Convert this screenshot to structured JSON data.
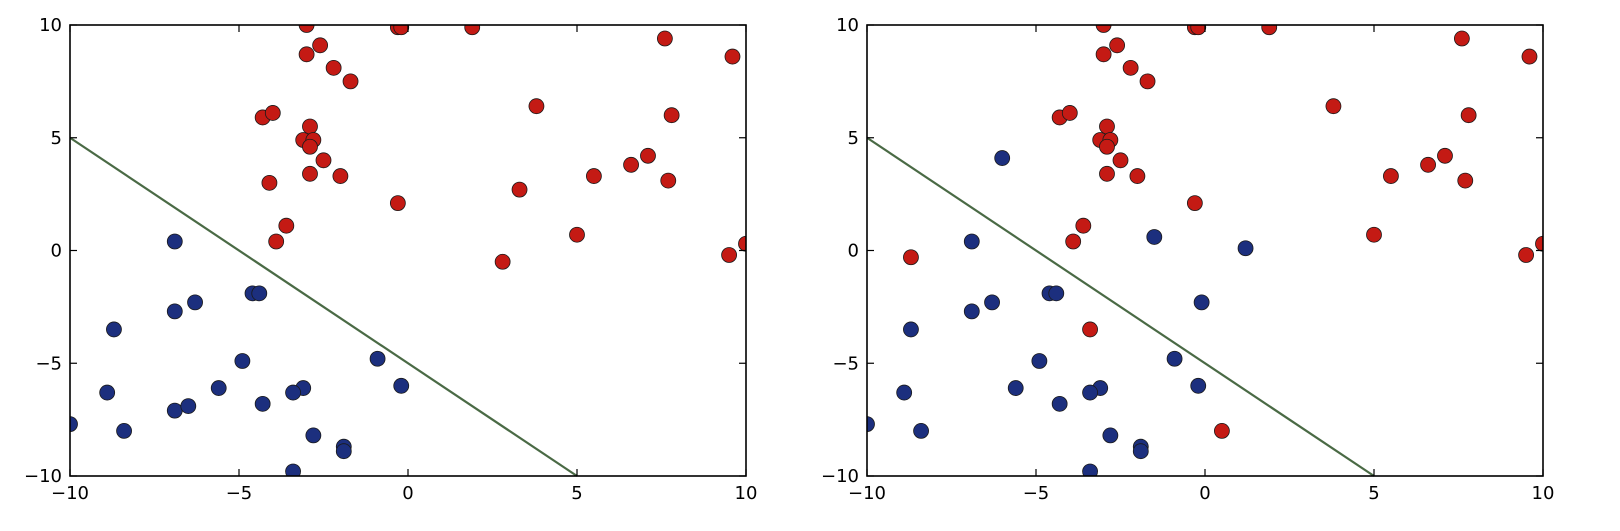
{
  "colors": {
    "class_a": "#c41a14",
    "class_b": "#1c2f7e",
    "boundary": "#4a6a45",
    "marker_edge": "#1a1a1a"
  },
  "chart_data": [
    {
      "type": "scatter",
      "xlim": [
        -10,
        10
      ],
      "ylim": [
        -10,
        10
      ],
      "xticks": [
        -10,
        -5,
        0,
        5,
        10
      ],
      "yticks": [
        -10,
        -5,
        0,
        5,
        10
      ],
      "xtick_labels": [
        "−10",
        "−5",
        "0",
        "5",
        "10"
      ],
      "ytick_labels": [
        "−10",
        "−5",
        "0",
        "5",
        "10"
      ],
      "grid": false,
      "line": {
        "x": [
          -10,
          5
        ],
        "y": [
          5,
          -10
        ]
      },
      "series": [
        {
          "color": "#c41a14",
          "points": [
            [
              -3.0,
              10.0
            ],
            [
              -0.3,
              9.9
            ],
            [
              -0.2,
              9.9
            ],
            [
              1.9,
              9.9
            ],
            [
              -2.6,
              9.1
            ],
            [
              -3.0,
              8.7
            ],
            [
              -2.2,
              8.1
            ],
            [
              -1.7,
              7.5
            ],
            [
              7.6,
              9.4
            ],
            [
              9.6,
              8.6
            ],
            [
              -4.3,
              5.9
            ],
            [
              -4.0,
              6.1
            ],
            [
              3.8,
              6.4
            ],
            [
              7.8,
              6.0
            ],
            [
              -3.1,
              4.9
            ],
            [
              -2.9,
              5.5
            ],
            [
              -2.8,
              4.9
            ],
            [
              -2.9,
              4.6
            ],
            [
              -2.5,
              4.0
            ],
            [
              -2.9,
              3.4
            ],
            [
              -2.0,
              3.3
            ],
            [
              -4.1,
              3.0
            ],
            [
              5.5,
              3.3
            ],
            [
              6.6,
              3.8
            ],
            [
              7.1,
              4.2
            ],
            [
              7.7,
              3.1
            ],
            [
              3.3,
              2.7
            ],
            [
              -0.3,
              2.1
            ],
            [
              -3.6,
              1.1
            ],
            [
              -3.9,
              0.4
            ],
            [
              5.0,
              0.7
            ],
            [
              10.0,
              0.3
            ],
            [
              2.8,
              -0.5
            ],
            [
              9.5,
              -0.2
            ]
          ]
        },
        {
          "color": "#1c2f7e",
          "points": [
            [
              -6.9,
              0.4
            ],
            [
              -4.6,
              -1.9
            ],
            [
              -4.4,
              -1.9
            ],
            [
              -6.3,
              -2.3
            ],
            [
              -6.9,
              -2.7
            ],
            [
              -8.7,
              -3.5
            ],
            [
              -4.9,
              -4.9
            ],
            [
              -0.9,
              -4.8
            ],
            [
              -5.6,
              -6.1
            ],
            [
              -3.1,
              -6.1
            ],
            [
              -3.4,
              -6.3
            ],
            [
              -8.9,
              -6.3
            ],
            [
              -4.3,
              -6.8
            ],
            [
              -6.9,
              -7.1
            ],
            [
              -6.5,
              -6.9
            ],
            [
              -0.2,
              -6.0
            ],
            [
              -10.0,
              -7.7
            ],
            [
              -8.4,
              -8.0
            ],
            [
              -2.8,
              -8.2
            ],
            [
              -1.9,
              -8.7
            ],
            [
              -1.9,
              -8.9
            ],
            [
              -3.4,
              -9.8
            ]
          ]
        }
      ]
    },
    {
      "type": "scatter",
      "xlim": [
        -10,
        10
      ],
      "ylim": [
        -10,
        10
      ],
      "xticks": [
        -10,
        -5,
        0,
        5,
        10
      ],
      "yticks": [
        -10,
        -5,
        0,
        5,
        10
      ],
      "xtick_labels": [
        "−10",
        "−5",
        "0",
        "5",
        "10"
      ],
      "ytick_labels": [
        "−10",
        "−5",
        "0",
        "5",
        "10"
      ],
      "grid": false,
      "line": {
        "x": [
          -10,
          5
        ],
        "y": [
          5,
          -10
        ]
      },
      "series": [
        {
          "color": "#c41a14",
          "points": [
            [
              -3.0,
              10.0
            ],
            [
              -0.3,
              9.9
            ],
            [
              -0.2,
              9.9
            ],
            [
              1.9,
              9.9
            ],
            [
              -2.6,
              9.1
            ],
            [
              -3.0,
              8.7
            ],
            [
              -2.2,
              8.1
            ],
            [
              -1.7,
              7.5
            ],
            [
              7.6,
              9.4
            ],
            [
              9.6,
              8.6
            ],
            [
              -4.3,
              5.9
            ],
            [
              -4.0,
              6.1
            ],
            [
              3.8,
              6.4
            ],
            [
              7.8,
              6.0
            ],
            [
              -3.1,
              4.9
            ],
            [
              -2.9,
              5.5
            ],
            [
              -2.8,
              4.9
            ],
            [
              -2.9,
              4.6
            ],
            [
              -2.5,
              4.0
            ],
            [
              -2.9,
              3.4
            ],
            [
              -2.0,
              3.3
            ],
            [
              5.5,
              3.3
            ],
            [
              6.6,
              3.8
            ],
            [
              7.1,
              4.2
            ],
            [
              7.7,
              3.1
            ],
            [
              -0.3,
              2.1
            ],
            [
              -3.6,
              1.1
            ],
            [
              -3.9,
              0.4
            ],
            [
              5.0,
              0.7
            ],
            [
              10.0,
              0.3
            ],
            [
              9.5,
              -0.2
            ],
            [
              -8.7,
              -0.3
            ],
            [
              -3.4,
              -3.5
            ],
            [
              0.5,
              -8.0
            ]
          ]
        },
        {
          "color": "#1c2f7e",
          "points": [
            [
              -6.0,
              4.1
            ],
            [
              -1.5,
              0.6
            ],
            [
              1.2,
              0.1
            ],
            [
              -6.9,
              0.4
            ],
            [
              -4.6,
              -1.9
            ],
            [
              -4.4,
              -1.9
            ],
            [
              -6.3,
              -2.3
            ],
            [
              -0.1,
              -2.3
            ],
            [
              -6.9,
              -2.7
            ],
            [
              -8.7,
              -3.5
            ],
            [
              -4.9,
              -4.9
            ],
            [
              -0.9,
              -4.8
            ],
            [
              -5.6,
              -6.1
            ],
            [
              -3.1,
              -6.1
            ],
            [
              -3.4,
              -6.3
            ],
            [
              -8.9,
              -6.3
            ],
            [
              -4.3,
              -6.8
            ],
            [
              -0.2,
              -6.0
            ],
            [
              -10.0,
              -7.7
            ],
            [
              -8.4,
              -8.0
            ],
            [
              -2.8,
              -8.2
            ],
            [
              -1.9,
              -8.7
            ],
            [
              -1.9,
              -8.9
            ],
            [
              -3.4,
              -9.8
            ]
          ]
        }
      ]
    }
  ]
}
